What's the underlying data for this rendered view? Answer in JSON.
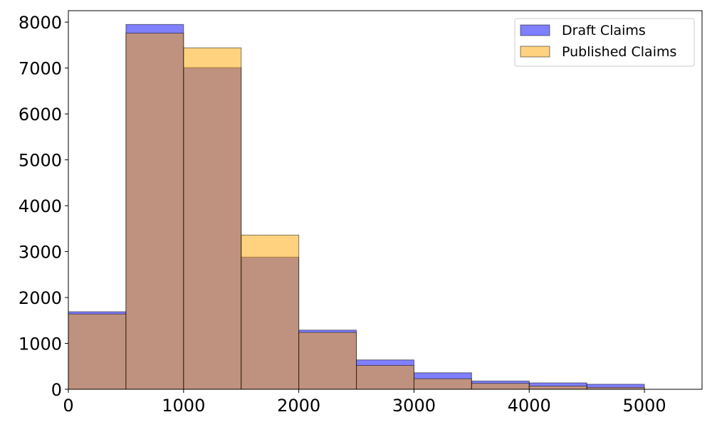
{
  "chart_data": {
    "type": "bar",
    "bin_edges": [
      0,
      500,
      1000,
      1500,
      2000,
      2500,
      3000,
      3500,
      4000,
      4500,
      5000
    ],
    "series": [
      {
        "name": "Draft Claims",
        "color": "#0000ff",
        "alpha": 0.5,
        "values": [
          1690,
          7950,
          7010,
          2880,
          1290,
          640,
          360,
          180,
          140,
          110
        ]
      },
      {
        "name": "Published Claims",
        "color": "#ffa500",
        "alpha": 0.5,
        "values": [
          1640,
          7760,
          7440,
          3360,
          1240,
          520,
          230,
          130,
          70,
          40
        ]
      }
    ],
    "xlim": [
      0,
      5500
    ],
    "ylim": [
      0,
      8250
    ],
    "xticks": [
      0,
      1000,
      2000,
      3000,
      4000,
      5000
    ],
    "xtick_labels": [
      "0",
      "1000",
      "2000",
      "3000",
      "4000",
      "5000"
    ],
    "yticks": [
      0,
      1000,
      2000,
      3000,
      4000,
      5000,
      6000,
      7000,
      8000
    ],
    "ytick_labels": [
      "0",
      "1000",
      "2000",
      "3000",
      "4000",
      "5000",
      "6000",
      "7000",
      "8000"
    ],
    "title": "",
    "xlabel": "",
    "ylabel": "",
    "grid": false,
    "legend_position": "top-right"
  }
}
